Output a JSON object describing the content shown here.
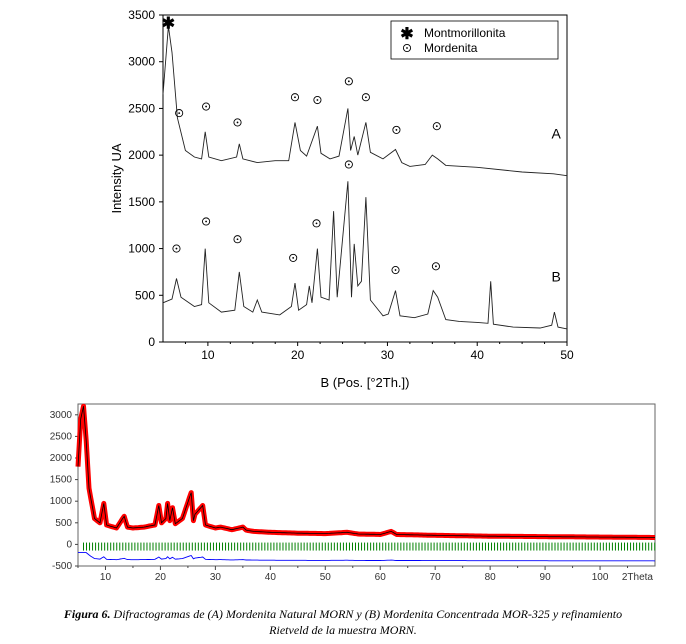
{
  "chart_data": [
    {
      "type": "line",
      "xlabel": "B (Pos. [°2Th.])",
      "ylabel": "Intensity UA",
      "xlim": [
        5,
        50
      ],
      "ylim": [
        0,
        3500
      ],
      "x_ticks": [
        10,
        20,
        30,
        40,
        50
      ],
      "y_ticks": [
        0,
        500,
        1000,
        1500,
        2000,
        2500,
        3000,
        3500
      ],
      "x_ticks_labels": [
        "10",
        "20",
        "30",
        "40",
        "50"
      ],
      "y_ticks_labels": [
        "0",
        "500",
        "1000",
        "1500",
        "2000",
        "2500",
        "3000",
        "3500"
      ],
      "legend": {
        "position": "top-right",
        "entries": [
          {
            "symbol": "asterisk",
            "label": "Montmorillonita"
          },
          {
            "symbol": "circle-dot",
            "label": "Mordenita"
          }
        ]
      },
      "series": [
        {
          "name": "A",
          "points": [
            [
              5.0,
              2650
            ],
            [
              5.6,
              3380
            ],
            [
              6.0,
              3100
            ],
            [
              6.6,
              2400
            ],
            [
              7.5,
              2050
            ],
            [
              8.5,
              1980
            ],
            [
              9.3,
              1960
            ],
            [
              9.7,
              2250
            ],
            [
              10.1,
              1980
            ],
            [
              11.5,
              1940
            ],
            [
              13.2,
              1980
            ],
            [
              13.5,
              2120
            ],
            [
              13.9,
              1960
            ],
            [
              15.5,
              1920
            ],
            [
              17.5,
              1940
            ],
            [
              19.0,
              1940
            ],
            [
              19.7,
              2350
            ],
            [
              20.3,
              2050
            ],
            [
              21.0,
              1990
            ],
            [
              22.2,
              2310
            ],
            [
              22.6,
              2020
            ],
            [
              23.6,
              1960
            ],
            [
              24.6,
              1990
            ],
            [
              25.6,
              2500
            ],
            [
              25.9,
              2050
            ],
            [
              26.3,
              2200
            ],
            [
              26.7,
              2000
            ],
            [
              27.6,
              2350
            ],
            [
              28.1,
              2030
            ],
            [
              29.5,
              1960
            ],
            [
              30.9,
              2060
            ],
            [
              31.6,
              1920
            ],
            [
              32.5,
              1880
            ],
            [
              34.2,
              1900
            ],
            [
              35.0,
              2000
            ],
            [
              35.6,
              1960
            ],
            [
              36.5,
              1890
            ],
            [
              40.0,
              1870
            ],
            [
              45.0,
              1820
            ],
            [
              48.5,
              1800
            ],
            [
              50.0,
              1780
            ]
          ]
        },
        {
          "name": "B",
          "points": [
            [
              5.0,
              420
            ],
            [
              6.0,
              460
            ],
            [
              6.5,
              680
            ],
            [
              7.0,
              480
            ],
            [
              8.5,
              380
            ],
            [
              9.3,
              400
            ],
            [
              9.7,
              1000
            ],
            [
              10.1,
              420
            ],
            [
              11.5,
              320
            ],
            [
              13.0,
              340
            ],
            [
              13.5,
              750
            ],
            [
              14.0,
              380
            ],
            [
              15.0,
              320
            ],
            [
              15.5,
              450
            ],
            [
              16.0,
              320
            ],
            [
              18.0,
              290
            ],
            [
              19.3,
              380
            ],
            [
              19.7,
              630
            ],
            [
              20.1,
              340
            ],
            [
              21.0,
              400
            ],
            [
              21.3,
              600
            ],
            [
              21.6,
              420
            ],
            [
              22.2,
              1000
            ],
            [
              22.6,
              480
            ],
            [
              23.5,
              450
            ],
            [
              24.0,
              1400
            ],
            [
              24.4,
              480
            ],
            [
              25.6,
              1720
            ],
            [
              26.0,
              480
            ],
            [
              26.3,
              1050
            ],
            [
              26.7,
              600
            ],
            [
              27.1,
              650
            ],
            [
              27.6,
              1550
            ],
            [
              28.1,
              450
            ],
            [
              29.5,
              280
            ],
            [
              30.1,
              300
            ],
            [
              30.9,
              550
            ],
            [
              31.4,
              280
            ],
            [
              33.0,
              260
            ],
            [
              34.5,
              300
            ],
            [
              35.1,
              550
            ],
            [
              35.6,
              480
            ],
            [
              36.5,
              240
            ],
            [
              38.0,
              220
            ],
            [
              40.0,
              210
            ],
            [
              41.2,
              200
            ],
            [
              41.5,
              650
            ],
            [
              41.8,
              190
            ],
            [
              44.0,
              160
            ],
            [
              47.0,
              150
            ],
            [
              48.3,
              180
            ],
            [
              48.6,
              320
            ],
            [
              49.0,
              160
            ],
            [
              50.0,
              140
            ]
          ]
        }
      ],
      "annotations": [
        {
          "text": "A",
          "x": 48.8,
          "y": 2180
        },
        {
          "text": "B",
          "x": 48.8,
          "y": 650
        }
      ],
      "markers": [
        {
          "symbol": "asterisk",
          "x": 5.6,
          "y": 3420
        },
        {
          "symbol": "circle-dot",
          "x": 6.8,
          "y": 2450
        },
        {
          "symbol": "circle-dot",
          "x": 9.8,
          "y": 2520
        },
        {
          "symbol": "circle-dot",
          "x": 13.3,
          "y": 2350
        },
        {
          "symbol": "circle-dot",
          "x": 19.7,
          "y": 2620
        },
        {
          "symbol": "circle-dot",
          "x": 22.2,
          "y": 2590
        },
        {
          "symbol": "circle-dot",
          "x": 25.7,
          "y": 2790
        },
        {
          "symbol": "circle-dot",
          "x": 27.6,
          "y": 2620
        },
        {
          "symbol": "circle-dot",
          "x": 31.0,
          "y": 2270
        },
        {
          "symbol": "circle-dot",
          "x": 35.5,
          "y": 2310
        },
        {
          "symbol": "circle-dot",
          "x": 6.5,
          "y": 1000
        },
        {
          "symbol": "circle-dot",
          "x": 9.8,
          "y": 1290
        },
        {
          "symbol": "circle-dot",
          "x": 13.3,
          "y": 1100
        },
        {
          "symbol": "circle-dot",
          "x": 19.5,
          "y": 900
        },
        {
          "symbol": "circle-dot",
          "x": 22.1,
          "y": 1270
        },
        {
          "symbol": "circle-dot",
          "x": 25.7,
          "y": 1900
        },
        {
          "symbol": "circle-dot",
          "x": 30.9,
          "y": 770
        },
        {
          "symbol": "circle-dot",
          "x": 35.4,
          "y": 810
        }
      ]
    },
    {
      "type": "line",
      "xlabel": "2Theta",
      "ylabel": "",
      "xlim": [
        5,
        110
      ],
      "ylim": [
        -500,
        3250
      ],
      "x_ticks": [
        10,
        20,
        30,
        40,
        50,
        60,
        70,
        80,
        90,
        100
      ],
      "y_ticks": [
        -500,
        0,
        500,
        1000,
        1500,
        2000,
        2500,
        3000
      ],
      "x_ticks_labels": [
        "10",
        "20",
        "30",
        "40",
        "50",
        "60",
        "70",
        "80",
        "90",
        "100"
      ],
      "y_ticks_labels": [
        "-500",
        "0",
        "500",
        "1000",
        "1500",
        "2000",
        "2500",
        "3000"
      ],
      "colors": {
        "observed": "#ff0000",
        "calculated": "#000000",
        "reflections": "#008000",
        "difference": "#0000ff"
      },
      "series": [
        {
          "name": "",
          "points": [
            [
              5.0,
              1800
            ],
            [
              5.5,
              2900
            ],
            [
              6.0,
              3200
            ],
            [
              6.5,
              2400
            ],
            [
              7.0,
              1300
            ],
            [
              8.0,
              600
            ],
            [
              9.0,
              500
            ],
            [
              9.7,
              950
            ],
            [
              10.2,
              450
            ],
            [
              12.0,
              380
            ],
            [
              13.4,
              650
            ],
            [
              14.0,
              400
            ],
            [
              15.0,
              380
            ],
            [
              17.0,
              400
            ],
            [
              19.0,
              450
            ],
            [
              19.7,
              900
            ],
            [
              20.2,
              500
            ],
            [
              21.0,
              600
            ],
            [
              21.3,
              950
            ],
            [
              21.7,
              550
            ],
            [
              22.2,
              850
            ],
            [
              22.7,
              480
            ],
            [
              24.0,
              600
            ],
            [
              25.6,
              1200
            ],
            [
              26.0,
              550
            ],
            [
              26.3,
              700
            ],
            [
              27.7,
              900
            ],
            [
              28.2,
              450
            ],
            [
              30.0,
              380
            ],
            [
              31.0,
              400
            ],
            [
              33.0,
              340
            ],
            [
              35.0,
              400
            ],
            [
              35.6,
              330
            ],
            [
              37.0,
              300
            ],
            [
              40.0,
              280
            ],
            [
              45.0,
              260
            ],
            [
              50.0,
              250
            ],
            [
              54.0,
              280
            ],
            [
              56.0,
              240
            ],
            [
              60.0,
              230
            ],
            [
              62.0,
              300
            ],
            [
              63.0,
              230
            ],
            [
              70.0,
              210
            ],
            [
              80.0,
              190
            ],
            [
              90.0,
              180
            ],
            [
              100.0,
              170
            ],
            [
              110.0,
              160
            ]
          ]
        }
      ]
    }
  ],
  "caption": {
    "label": "Figura 6.",
    "text": " Difractogramas de (A) Mordenita Natural MORN y (B) Mordenita Concentrada MOR-325 y refinamiento",
    "line2": "Rietveld de la muestra MORN."
  }
}
